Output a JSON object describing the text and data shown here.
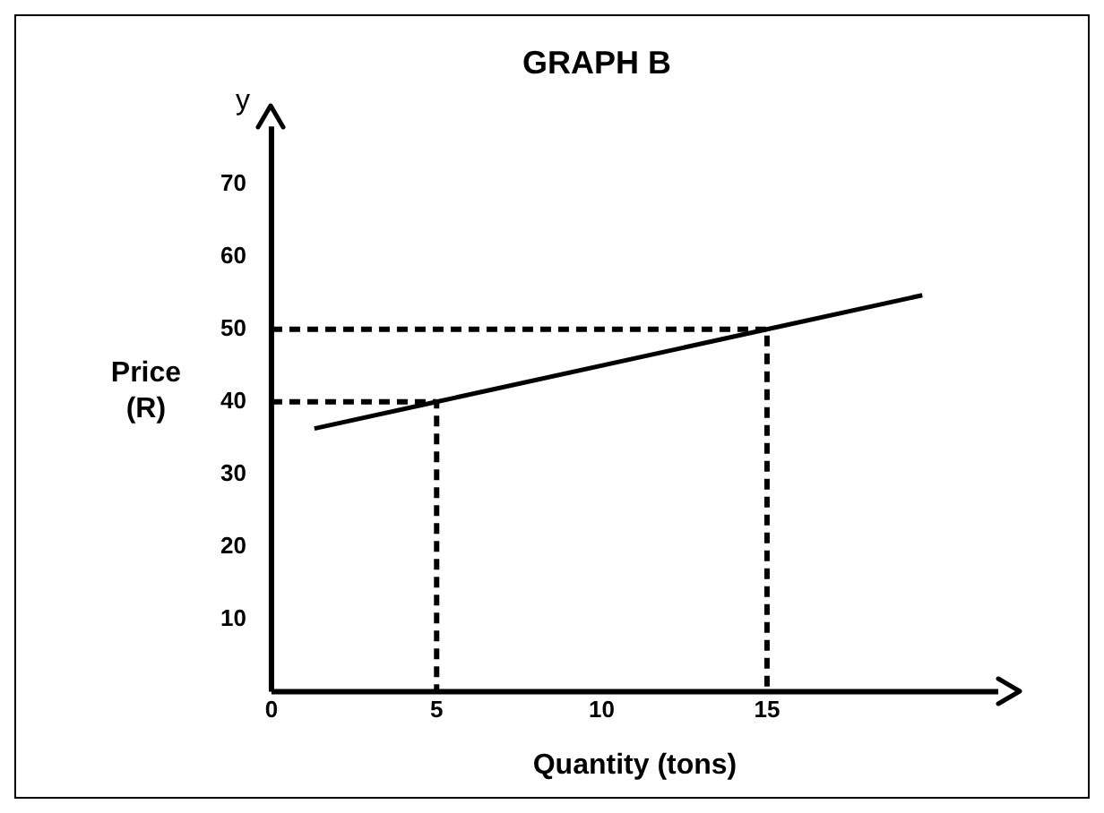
{
  "chart_data": {
    "type": "line",
    "title": "GRAPH B",
    "xlabel": "Quantity (tons)",
    "ylabel": "Price (R)",
    "annotations": [
      "y"
    ],
    "xlim": [
      0,
      22
    ],
    "ylim": [
      0,
      78
    ],
    "xticks": [
      0,
      5,
      10,
      15
    ],
    "yticks": [
      10,
      20,
      30,
      40,
      50,
      60,
      70
    ],
    "grid": false,
    "marker": "none",
    "series": [
      {
        "color": "#000000",
        "x": [
          1.3,
          5,
          15,
          19.7
        ],
        "values": [
          36.3,
          40,
          50,
          54.7
        ],
        "line_style": "solid"
      },
      {
        "color": "#000000",
        "x": [
          0,
          5,
          5
        ],
        "values": [
          40,
          40,
          0
        ],
        "line_style": "dashed"
      },
      {
        "color": "#000000",
        "x": [
          0,
          15,
          15
        ],
        "values": [
          50,
          50,
          0
        ],
        "line_style": "dashed"
      }
    ]
  }
}
